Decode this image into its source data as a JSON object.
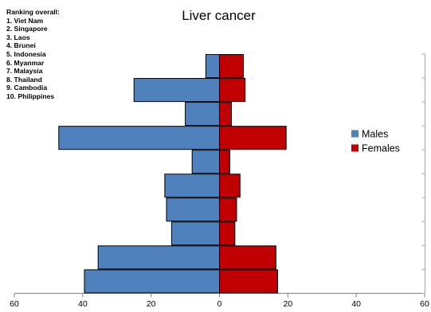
{
  "chart_data": {
    "type": "bar",
    "orientation": "horizontal",
    "layout": "population-pyramid",
    "title": "Liver cancer",
    "xlabel": "",
    "ylabel": "",
    "xlim": [
      -60,
      60
    ],
    "xticks": [
      -60,
      -40,
      -20,
      0,
      20,
      40,
      60
    ],
    "x_tick_labels": [
      "60",
      "40",
      "20",
      "0",
      "20",
      "40",
      "60"
    ],
    "categories": [
      "Philippines",
      "Cambodia",
      "Thailand",
      "Malaysia",
      "Myanmar",
      "Indonesia",
      "Brunei",
      "Laos",
      "Singapore",
      "Viet Nam"
    ],
    "series": [
      {
        "name": "Males",
        "color": "#4f81bd",
        "direction": "left",
        "values": [
          39.5,
          35.5,
          14,
          15.5,
          16,
          8,
          47,
          10,
          25,
          4
        ]
      },
      {
        "name": "Females",
        "color": "#c00000",
        "direction": "right",
        "values": [
          17,
          16.5,
          4.5,
          5,
          6,
          3,
          19.5,
          3.5,
          7.5,
          7
        ]
      }
    ],
    "legend": {
      "placement": "right",
      "entries": [
        "Males",
        "Females"
      ]
    },
    "grid": false
  },
  "ranking": {
    "heading": "Ranking overall:",
    "items": [
      "1.  Viet Nam",
      "2.  Singapore",
      "3.  Laos",
      "4.  Brunei",
      "5.  Indonesia",
      "6.  Myanmar",
      "7.  Malaysia",
      "8.  Thailand",
      "9.  Cambodia",
      "10. Philippines"
    ]
  }
}
